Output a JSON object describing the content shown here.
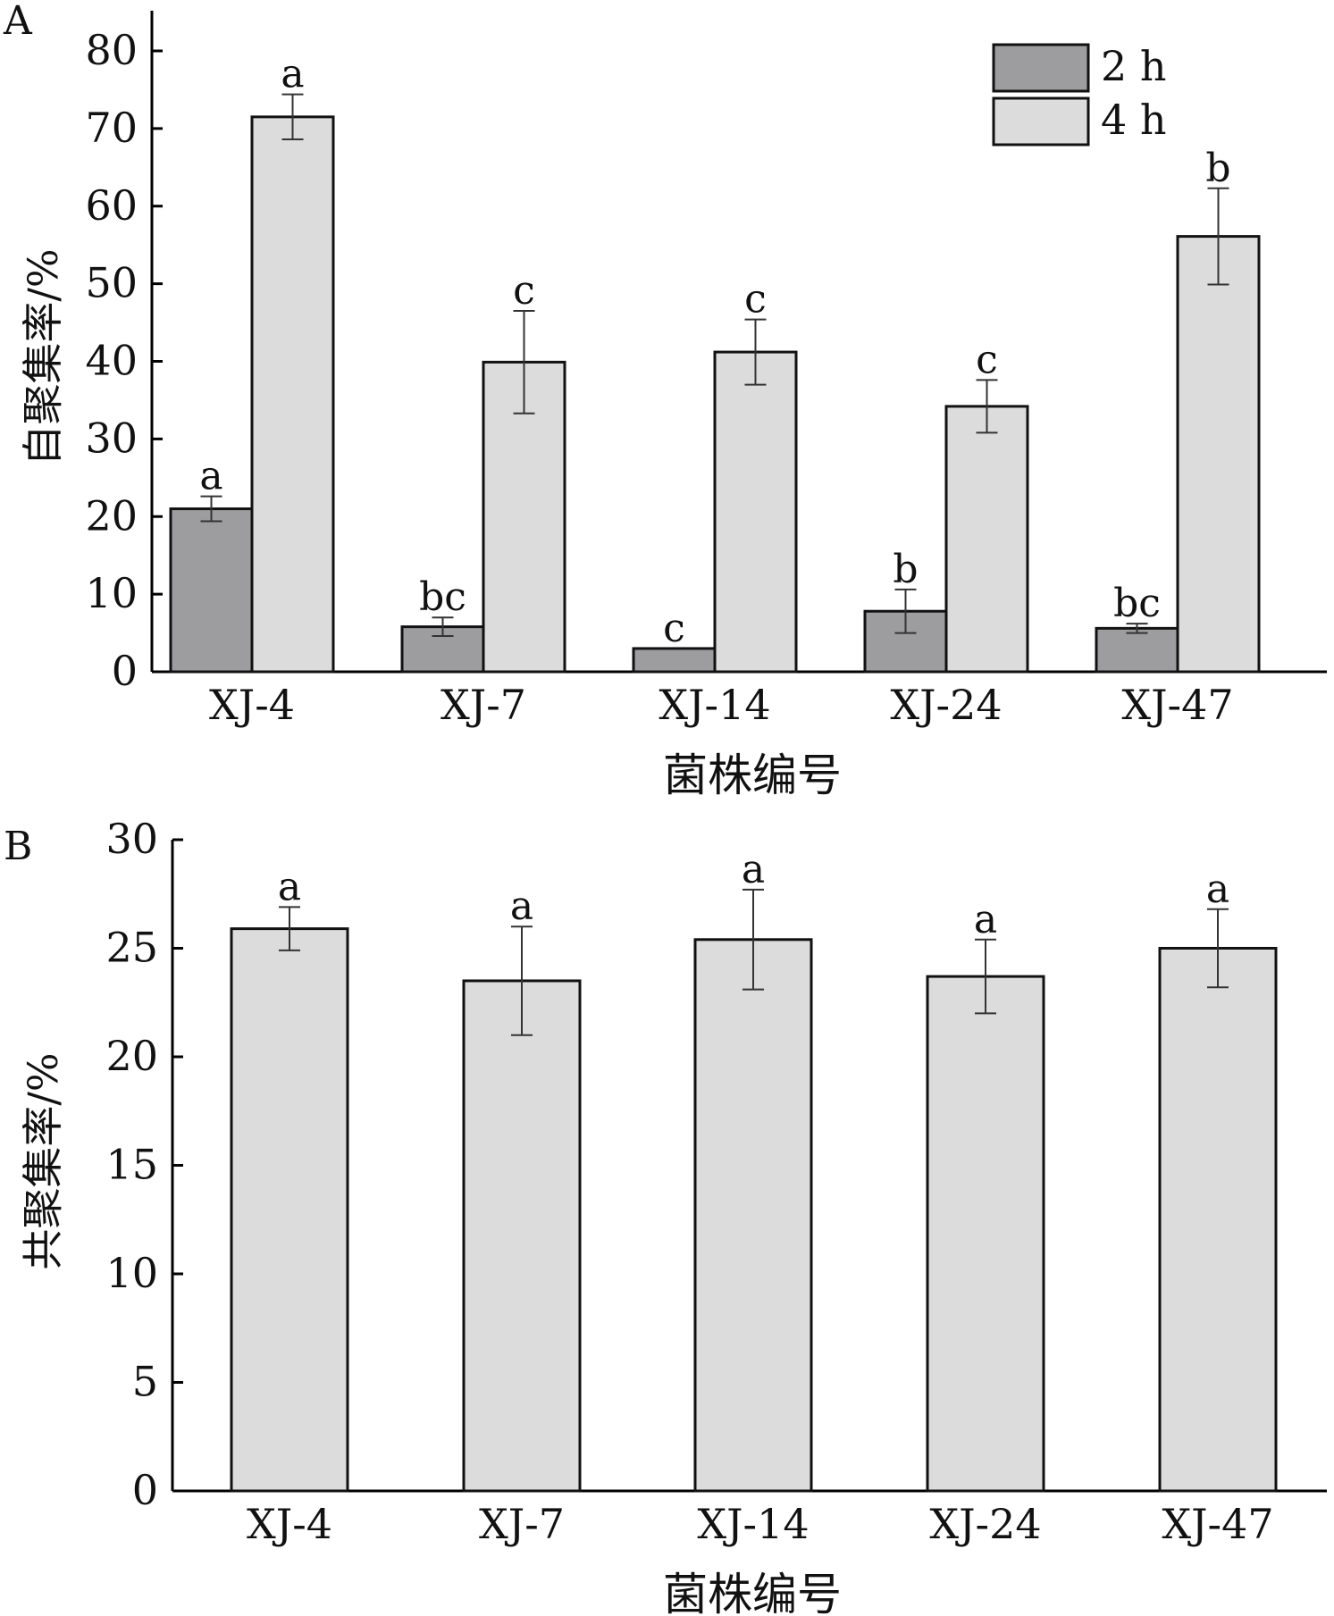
{
  "chart_data": [
    {
      "panel_label": "A",
      "type": "bar",
      "categories": [
        "XJ-4",
        "XJ-7",
        "XJ-14",
        "XJ-24",
        "XJ-47"
      ],
      "series": [
        {
          "name": "2 h",
          "color": "#9d9d9f",
          "values": [
            21.0,
            5.8,
            3.0,
            7.8,
            5.6
          ],
          "errors": [
            1.6,
            1.2,
            0.0,
            2.8,
            0.6
          ],
          "labels": [
            "a",
            "bc",
            "c",
            "b",
            "bc"
          ]
        },
        {
          "name": "4 h",
          "color": "#dcdcdc",
          "values": [
            71.5,
            39.9,
            41.2,
            34.2,
            56.1
          ],
          "errors": [
            2.9,
            6.6,
            4.2,
            3.4,
            6.2
          ],
          "labels": [
            "a",
            "c",
            "c",
            "c",
            "b"
          ]
        }
      ],
      "ylabel": "自聚集率/%",
      "xlabel": "菌株编号",
      "ylim": [
        0,
        80
      ],
      "yticks": [
        0,
        10,
        20,
        30,
        40,
        50,
        60,
        70,
        80
      ],
      "legend_position": "top-right",
      "grid": false
    },
    {
      "panel_label": "B",
      "type": "bar",
      "categories": [
        "XJ-4",
        "XJ-7",
        "XJ-14",
        "XJ-24",
        "XJ-47"
      ],
      "series": [
        {
          "color": "#dcdcdc",
          "values": [
            25.9,
            23.5,
            25.4,
            23.7,
            25.0
          ],
          "errors": [
            1.0,
            2.5,
            2.3,
            1.7,
            1.8
          ],
          "labels": [
            "a",
            "a",
            "a",
            "a",
            "a"
          ]
        }
      ],
      "ylabel": "共聚集率/%",
      "xlabel": "菌株编号",
      "ylim": [
        0,
        30
      ],
      "yticks": [
        0,
        5,
        10,
        15,
        20,
        25,
        30
      ],
      "grid": false
    }
  ]
}
